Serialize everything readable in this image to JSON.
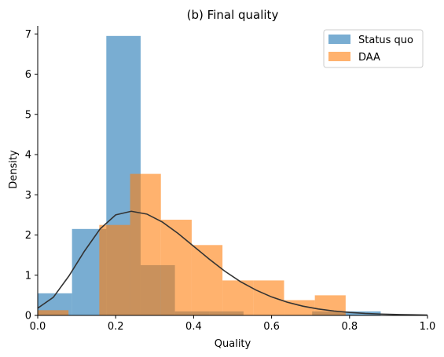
{
  "chart_data": {
    "type": "histogram",
    "title": "(b) Final quality",
    "xlabel": "Quality",
    "ylabel": "Density",
    "xlim": [
      0.0,
      1.0
    ],
    "ylim": [
      0,
      7.2
    ],
    "xticks": [
      "0.0",
      "0.2",
      "0.4",
      "0.6",
      "0.8",
      "1.0"
    ],
    "yticks": [
      "0",
      "1",
      "2",
      "3",
      "4",
      "5",
      "6",
      "7"
    ],
    "legend_position": "top-right",
    "series": [
      {
        "name": "Status quo",
        "color": "#1f77b4",
        "opacity": 0.6,
        "bins": [
          {
            "x0": 0.0,
            "x1": 0.088,
            "value": 0.55
          },
          {
            "x0": 0.088,
            "x1": 0.176,
            "value": 2.15
          },
          {
            "x0": 0.176,
            "x1": 0.264,
            "value": 6.95
          },
          {
            "x0": 0.264,
            "x1": 0.352,
            "value": 1.25
          },
          {
            "x0": 0.352,
            "x1": 0.44,
            "value": 0.1
          },
          {
            "x0": 0.44,
            "x1": 0.528,
            "value": 0.1
          },
          {
            "x0": 0.528,
            "x1": 0.616,
            "value": 0.0
          },
          {
            "x0": 0.616,
            "x1": 0.704,
            "value": 0.0
          },
          {
            "x0": 0.704,
            "x1": 0.792,
            "value": 0.1
          },
          {
            "x0": 0.792,
            "x1": 0.88,
            "value": 0.1
          }
        ]
      },
      {
        "name": "DAA",
        "color": "#ff7f0e",
        "opacity": 0.6,
        "bins": [
          {
            "x0": 0.0,
            "x1": 0.079,
            "value": 0.13
          },
          {
            "x0": 0.079,
            "x1": 0.158,
            "value": 0.0
          },
          {
            "x0": 0.158,
            "x1": 0.237,
            "value": 2.25
          },
          {
            "x0": 0.237,
            "x1": 0.316,
            "value": 3.52
          },
          {
            "x0": 0.316,
            "x1": 0.395,
            "value": 2.38
          },
          {
            "x0": 0.395,
            "x1": 0.474,
            "value": 1.75
          },
          {
            "x0": 0.474,
            "x1": 0.553,
            "value": 0.87
          },
          {
            "x0": 0.553,
            "x1": 0.632,
            "value": 0.87
          },
          {
            "x0": 0.632,
            "x1": 0.711,
            "value": 0.38
          },
          {
            "x0": 0.711,
            "x1": 0.79,
            "value": 0.5
          }
        ]
      }
    ],
    "density_curve": {
      "color": "#333333",
      "points": [
        [
          0.0,
          0.18
        ],
        [
          0.04,
          0.45
        ],
        [
          0.08,
          0.98
        ],
        [
          0.12,
          1.6
        ],
        [
          0.16,
          2.15
        ],
        [
          0.2,
          2.5
        ],
        [
          0.24,
          2.59
        ],
        [
          0.28,
          2.52
        ],
        [
          0.32,
          2.32
        ],
        [
          0.36,
          2.04
        ],
        [
          0.4,
          1.72
        ],
        [
          0.44,
          1.4
        ],
        [
          0.48,
          1.1
        ],
        [
          0.52,
          0.84
        ],
        [
          0.56,
          0.63
        ],
        [
          0.6,
          0.46
        ],
        [
          0.64,
          0.33
        ],
        [
          0.68,
          0.23
        ],
        [
          0.72,
          0.16
        ],
        [
          0.76,
          0.11
        ],
        [
          0.8,
          0.075
        ],
        [
          0.84,
          0.05
        ],
        [
          0.88,
          0.034
        ],
        [
          0.92,
          0.023
        ],
        [
          0.96,
          0.015
        ],
        [
          1.0,
          0.01
        ]
      ]
    }
  }
}
